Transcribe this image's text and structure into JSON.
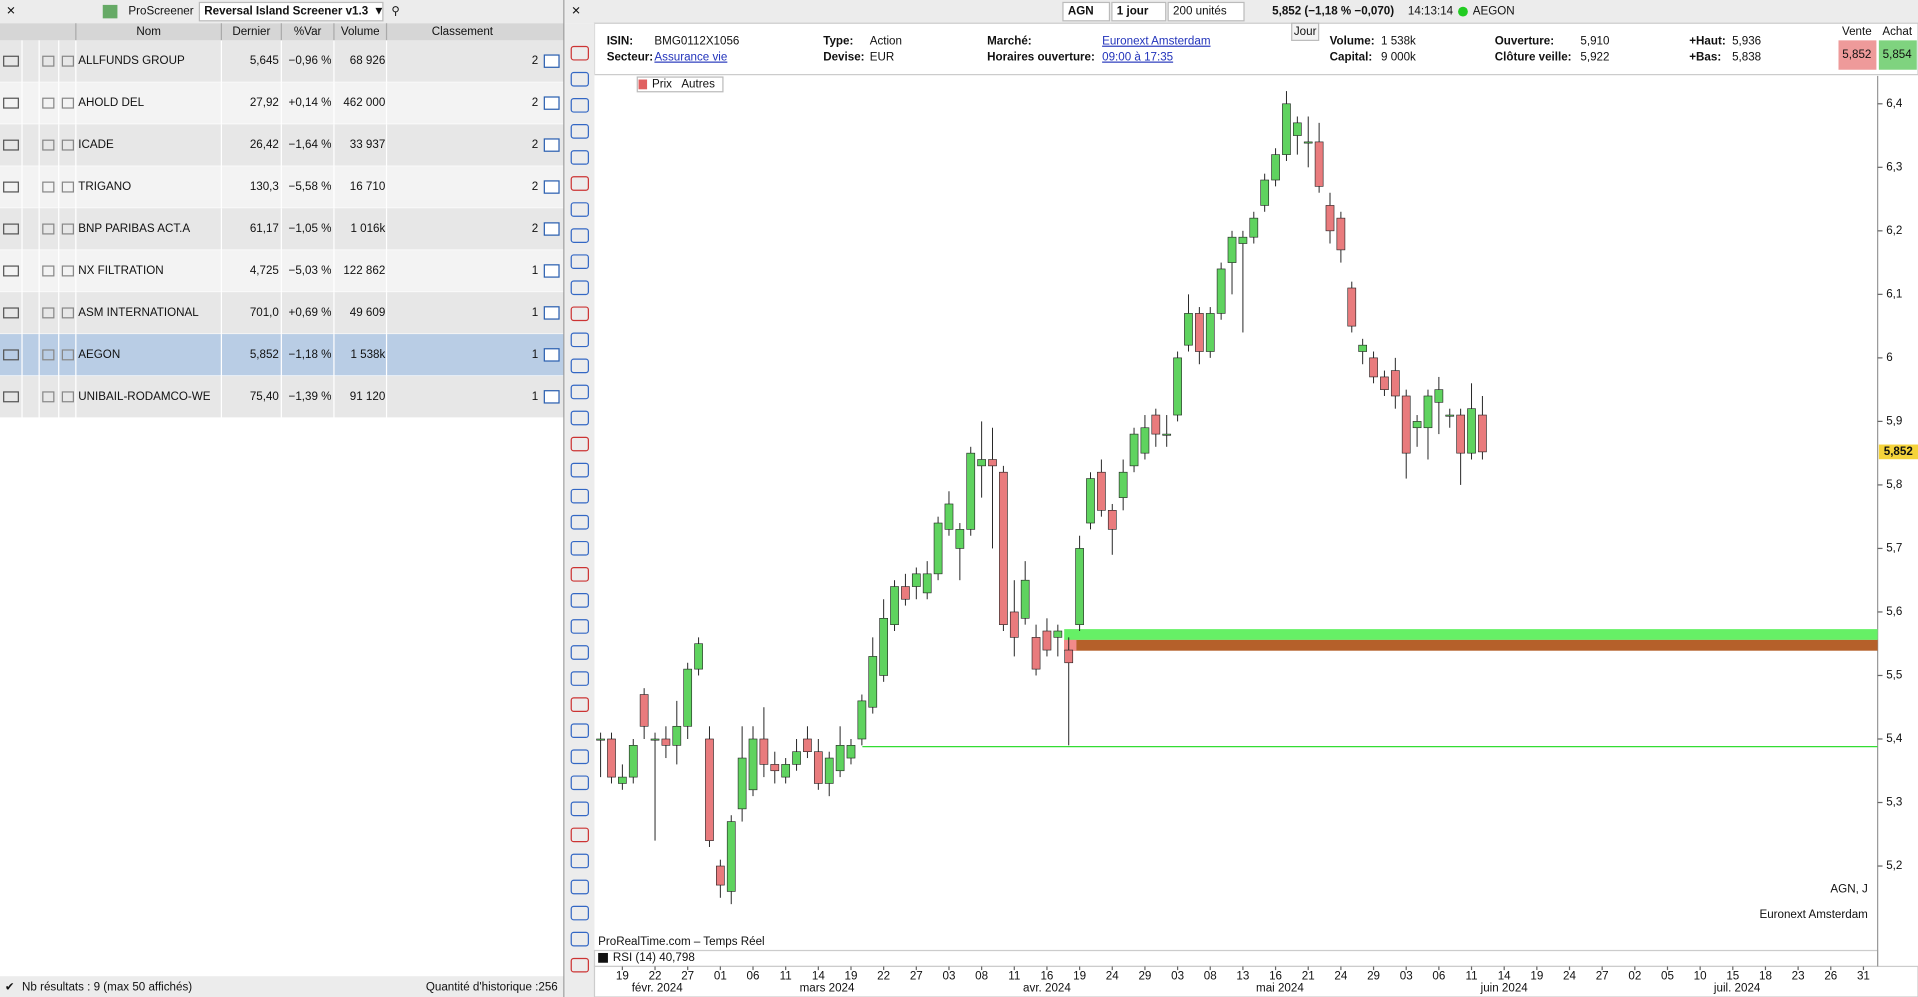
{
  "screener": {
    "app": "ProScreener",
    "name": "Reversal Island Screener v1.3",
    "columns": [
      "Nom",
      "Dernier",
      "%Var",
      "Volume",
      "Classement"
    ],
    "rows": [
      [
        "ALLFUNDS GROUP",
        "5,645",
        "−0,96 %",
        "68 926",
        "2"
      ],
      [
        "AHOLD DEL",
        "27,92",
        "+0,14 %",
        "462 000",
        "2"
      ],
      [
        "ICADE",
        "26,42",
        "−1,64 %",
        "33 937",
        "2"
      ],
      [
        "TRIGANO",
        "130,3",
        "−5,58 %",
        "16 710",
        "2"
      ],
      [
        "BNP PARIBAS ACT.A",
        "61,17",
        "−1,05 %",
        "1 016k",
        "2"
      ],
      [
        "NX FILTRATION",
        "4,725",
        "−5,03 %",
        "122 862",
        "1"
      ],
      [
        "ASM INTERNATIONAL",
        "701,0",
        "+0,69 %",
        "49 609",
        "1"
      ],
      [
        "AEGON",
        "5,852",
        "−1,18 %",
        "1 538k",
        "1"
      ],
      [
        "UNIBAIL-RODAMCO-WE",
        "75,40",
        "−1,39 %",
        "91 120",
        "1"
      ]
    ],
    "selected_row": 7,
    "footer_left": "Nb résultats : 9 (max 50 affichés)",
    "footer_right": "Quantité d'historique :256"
  },
  "header": {
    "symbol": "AGN",
    "period": "1 jour",
    "units": "200 unités",
    "quote": "5,852 (−1,18 % −0,070)",
    "time": "14:13:14",
    "name": "AEGON"
  },
  "info": {
    "tab": "Jour",
    "fields": [
      [
        "ISIN:",
        "BMG0112X1056"
      ],
      [
        "Type:",
        "Action"
      ],
      [
        "Marché:",
        "Euronext Amsterdam"
      ],
      [
        "Volume:",
        "1 538k"
      ],
      [
        "Ouverture:",
        "5,910"
      ],
      [
        "+Haut:",
        "5,936"
      ],
      [
        "Secteur:",
        "Assurance vie"
      ],
      [
        "Devise:",
        "EUR"
      ],
      [
        "Horaires ouverture:",
        "09:00 à 17:35"
      ],
      [
        "Capital:",
        "9 000k"
      ],
      [
        "Clôture veille:",
        "5,922"
      ],
      [
        "+Bas:",
        "5,838"
      ]
    ]
  },
  "bid_ask": {
    "sell_label": "Vente",
    "buy_label": "Achat",
    "sell": "5,852",
    "buy": "5,854"
  },
  "chart_data": {
    "type": "candlestick",
    "toolbar": [
      "Prix",
      "Autres"
    ],
    "source": "ProRealTime.com – Temps Réel",
    "indicator": "RSI (14) 40,798",
    "watermark": [
      "AGN, J",
      "Euronext Amsterdam"
    ],
    "up_color": "#5fd35f",
    "down_color": "#e97b7d",
    "ylim": [
      5.067,
      6.444
    ],
    "yticks": [
      {
        "value": 5.2,
        "label": "5,2"
      },
      {
        "value": 5.3,
        "label": "5,3"
      },
      {
        "value": 5.4,
        "label": "5,4"
      },
      {
        "value": 5.5,
        "label": "5,5"
      },
      {
        "value": 5.6,
        "label": "5,6"
      },
      {
        "value": 5.7,
        "label": "5,7"
      },
      {
        "value": 5.8,
        "label": "5,8"
      },
      {
        "value": 5.9,
        "label": "5,9"
      },
      6,
      {
        "value": 6.1,
        "label": "6,1"
      },
      {
        "value": 6.2,
        "label": "6,2"
      },
      {
        "value": 6.3,
        "label": "6,3"
      },
      {
        "value": 6.4,
        "label": "6,4"
      }
    ],
    "last": {
      "value": 5.852,
      "label": "5,852"
    },
    "xticks": [
      "19",
      "22",
      "27",
      "01",
      "06",
      "11",
      "14",
      "19",
      "22",
      "27",
      "03",
      "08",
      "11",
      "16",
      "19",
      "24",
      "29",
      "03",
      "08",
      "13",
      "16",
      "21",
      "24",
      "29",
      "03",
      "06",
      "11",
      "14",
      "19",
      "24",
      "27",
      "02",
      "05",
      "10",
      "15",
      "18",
      "23",
      "26",
      "31"
    ],
    "months": [
      "févr. 2024",
      "mars 2024",
      "avr. 2024",
      "mai 2024",
      "juin 2024",
      "juil. 2024"
    ],
    "zones": [
      {
        "from": 5.556,
        "to": 5.573,
        "color": "#66f066"
      },
      {
        "from": 5.539,
        "to": 5.556,
        "color": "#b5602a"
      }
    ],
    "level": {
      "value": 5.388,
      "color": "#33dd33"
    },
    "candles": [
      {
        "open": 5.4,
        "high": 5.41,
        "low": 5.34,
        "close": 5.4
      },
      {
        "open": 5.4,
        "high": 5.41,
        "low": 5.33,
        "close": 5.34
      },
      {
        "open": 5.33,
        "high": 5.36,
        "low": 5.32,
        "close": 5.34
      },
      {
        "open": 5.34,
        "high": 5.4,
        "low": 5.33,
        "close": 5.39
      },
      {
        "open": 5.47,
        "high": 5.48,
        "low": 5.4,
        "close": 5.42
      },
      {
        "open": 5.4,
        "high": 5.41,
        "low": 5.24,
        "close": 5.4
      },
      {
        "open": 5.4,
        "high": 5.42,
        "low": 5.37,
        "close": 5.39
      },
      {
        "open": 5.39,
        "high": 5.46,
        "low": 5.36,
        "close": 5.42
      },
      {
        "open": 5.42,
        "high": 5.52,
        "low": 5.4,
        "close": 5.51
      },
      {
        "open": 5.51,
        "high": 5.56,
        "low": 5.5,
        "close": 5.55
      },
      {
        "open": 5.4,
        "high": 5.42,
        "low": 5.23,
        "close": 5.24
      },
      {
        "open": 5.2,
        "high": 5.21,
        "low": 5.15,
        "close": 5.17
      },
      {
        "open": 5.16,
        "high": 5.28,
        "low": 5.14,
        "close": 5.27
      },
      {
        "open": 5.29,
        "high": 5.42,
        "low": 5.27,
        "close": 5.37
      },
      {
        "open": 5.32,
        "high": 5.42,
        "low": 5.31,
        "close": 5.4
      },
      {
        "open": 5.4,
        "high": 5.45,
        "low": 5.34,
        "close": 5.36
      },
      {
        "open": 5.36,
        "high": 5.38,
        "low": 5.33,
        "close": 5.35
      },
      {
        "open": 5.34,
        "high": 5.37,
        "low": 5.33,
        "close": 5.36
      },
      {
        "open": 5.36,
        "high": 5.4,
        "low": 5.35,
        "close": 5.38
      },
      {
        "open": 5.4,
        "high": 5.42,
        "low": 5.37,
        "close": 5.38
      },
      {
        "open": 5.38,
        "high": 5.4,
        "low": 5.32,
        "close": 5.33
      },
      {
        "open": 5.33,
        "high": 5.38,
        "low": 5.31,
        "close": 5.37
      },
      {
        "open": 5.35,
        "high": 5.42,
        "low": 5.34,
        "close": 5.39
      },
      {
        "open": 5.37,
        "high": 5.4,
        "low": 5.36,
        "close": 5.39
      },
      {
        "open": 5.4,
        "high": 5.47,
        "low": 5.39,
        "close": 5.46
      },
      {
        "open": 5.45,
        "high": 5.56,
        "low": 5.44,
        "close": 5.53
      },
      {
        "open": 5.5,
        "high": 5.62,
        "low": 5.49,
        "close": 5.59
      },
      {
        "open": 5.58,
        "high": 5.65,
        "low": 5.57,
        "close": 5.64
      },
      {
        "open": 5.64,
        "high": 5.66,
        "low": 5.61,
        "close": 5.62
      },
      {
        "open": 5.64,
        "high": 5.67,
        "low": 5.62,
        "close": 5.66
      },
      {
        "open": 5.63,
        "high": 5.68,
        "low": 5.62,
        "close": 5.66
      },
      {
        "open": 5.66,
        "high": 5.75,
        "low": 5.65,
        "close": 5.74
      },
      {
        "open": 5.73,
        "high": 5.79,
        "low": 5.72,
        "close": 5.77
      },
      {
        "open": 5.7,
        "high": 5.74,
        "low": 5.65,
        "close": 5.73
      },
      {
        "open": 5.73,
        "high": 5.86,
        "low": 5.72,
        "close": 5.85
      },
      {
        "open": 5.83,
        "high": 5.9,
        "low": 5.78,
        "close": 5.84
      },
      {
        "open": 5.84,
        "high": 5.89,
        "low": 5.7,
        "close": 5.83
      },
      {
        "open": 5.82,
        "high": 5.83,
        "low": 5.57,
        "close": 5.58
      },
      {
        "open": 5.6,
        "high": 5.65,
        "low": 5.53,
        "close": 5.56
      },
      {
        "open": 5.59,
        "high": 5.68,
        "low": 5.58,
        "close": 5.65
      },
      {
        "open": 5.56,
        "high": 5.58,
        "low": 5.5,
        "close": 5.51
      },
      {
        "open": 5.57,
        "high": 5.59,
        "low": 5.53,
        "close": 5.54
      },
      {
        "open": 5.56,
        "high": 5.58,
        "low": 5.53,
        "close": 5.57
      },
      {
        "open": 5.54,
        "high": 5.56,
        "low": 5.39,
        "close": 5.52
      },
      {
        "open": 5.58,
        "high": 5.72,
        "low": 5.57,
        "close": 5.7
      },
      {
        "open": 5.74,
        "high": 5.82,
        "low": 5.73,
        "close": 5.81
      },
      {
        "open": 5.82,
        "high": 5.84,
        "low": 5.75,
        "close": 5.76
      },
      {
        "open": 5.76,
        "high": 5.77,
        "low": 5.69,
        "close": 5.73
      },
      {
        "open": 5.78,
        "high": 5.84,
        "low": 5.76,
        "close": 5.82
      },
      {
        "open": 5.83,
        "high": 5.89,
        "low": 5.82,
        "close": 5.88
      },
      {
        "open": 5.85,
        "high": 5.91,
        "low": 5.84,
        "close": 5.89
      },
      {
        "open": 5.91,
        "high": 5.92,
        "low": 5.86,
        "close": 5.88
      },
      {
        "open": 5.88,
        "high": 5.91,
        "low": 5.86,
        "close": 5.88
      },
      {
        "open": 5.91,
        "high": 6.01,
        "low": 5.9,
        "close": 6.0
      },
      {
        "open": 6.02,
        "high": 6.1,
        "low": 6.01,
        "close": 6.07
      },
      {
        "open": 6.07,
        "high": 6.08,
        "low": 5.99,
        "close": 6.01
      },
      {
        "open": 6.01,
        "high": 6.08,
        "low": 6.0,
        "close": 6.07
      },
      {
        "open": 6.07,
        "high": 6.15,
        "low": 6.06,
        "close": 6.14
      },
      {
        "open": 6.15,
        "high": 6.2,
        "low": 6.1,
        "close": 6.19
      },
      {
        "open": 6.18,
        "high": 6.2,
        "low": 6.04,
        "close": 6.19
      },
      {
        "open": 6.19,
        "high": 6.23,
        "low": 6.18,
        "close": 6.22
      },
      {
        "open": 6.24,
        "high": 6.29,
        "low": 6.23,
        "close": 6.28
      },
      {
        "open": 6.28,
        "high": 6.33,
        "low": 6.27,
        "close": 6.32
      },
      {
        "open": 6.32,
        "high": 6.42,
        "low": 6.31,
        "close": 6.4
      },
      {
        "open": 6.35,
        "high": 6.38,
        "low": 6.32,
        "close": 6.37
      },
      {
        "open": 6.34,
        "high": 6.38,
        "low": 6.3,
        "close": 6.34
      },
      {
        "open": 6.34,
        "high": 6.37,
        "low": 6.26,
        "close": 6.27
      },
      {
        "open": 6.24,
        "high": 6.26,
        "low": 6.18,
        "close": 6.2
      },
      {
        "open": 6.22,
        "high": 6.23,
        "low": 6.15,
        "close": 6.17
      },
      {
        "open": 6.11,
        "high": 6.12,
        "low": 6.04,
        "close": 6.05
      },
      {
        "open": 6.01,
        "high": 6.03,
        "low": 5.99,
        "close": 6.02
      },
      {
        "open": 6.0,
        "high": 6.01,
        "low": 5.96,
        "close": 5.97
      },
      {
        "open": 5.97,
        "high": 5.98,
        "low": 5.94,
        "close": 5.95
      },
      {
        "open": 5.98,
        "high": 6.0,
        "low": 5.92,
        "close": 5.94
      },
      {
        "open": 5.94,
        "high": 5.95,
        "low": 5.81,
        "close": 5.85
      },
      {
        "open": 5.89,
        "high": 5.91,
        "low": 5.86,
        "close": 5.9
      },
      {
        "open": 5.89,
        "high": 5.95,
        "low": 5.84,
        "close": 5.94
      },
      {
        "open": 5.93,
        "high": 5.97,
        "low": 5.88,
        "close": 5.95
      },
      {
        "open": 5.91,
        "high": 5.92,
        "low": 5.89,
        "close": 5.91
      },
      {
        "open": 5.91,
        "high": 5.92,
        "low": 5.8,
        "close": 5.85
      },
      {
        "open": 5.85,
        "high": 5.96,
        "low": 5.84,
        "close": 5.92
      },
      {
        "open": 5.91,
        "high": 5.94,
        "low": 5.84,
        "close": 5.852
      }
    ]
  }
}
